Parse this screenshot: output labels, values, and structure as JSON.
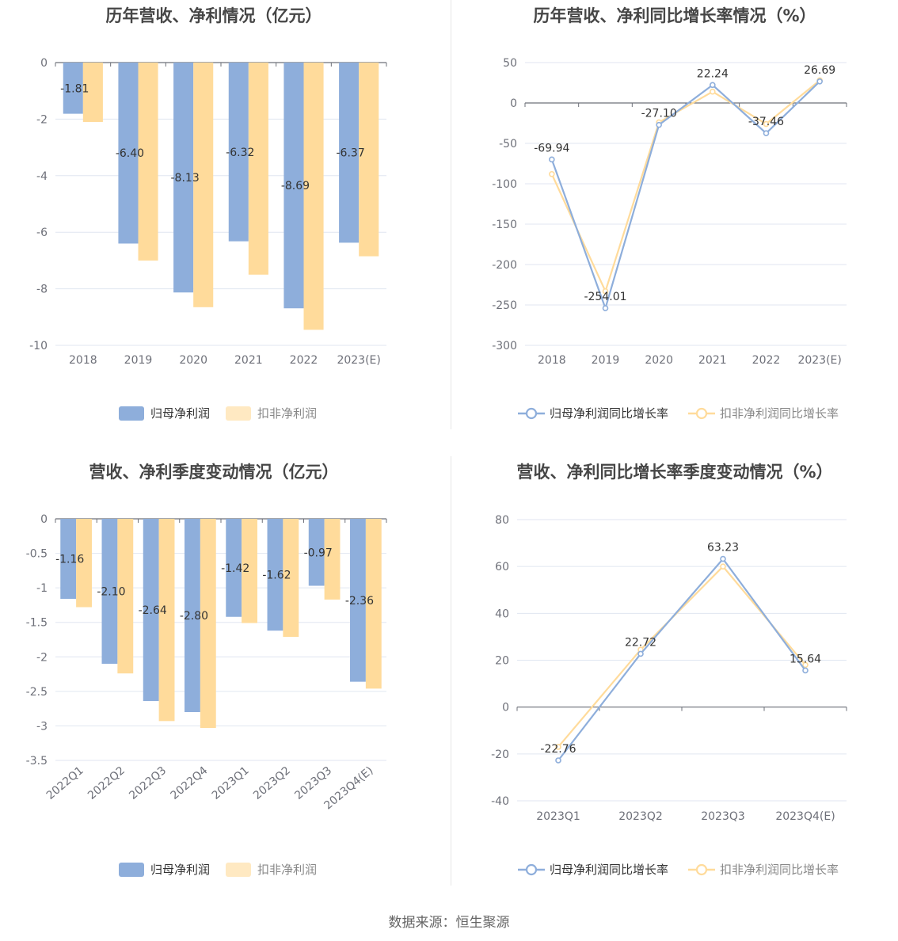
{
  "colors": {
    "primary": "#8eaedb",
    "secondary": "#ffdb9b",
    "secondary_light": "#ffe9c2",
    "axis": "#6e7079",
    "grid": "#e0e6f1",
    "label": "#333333",
    "tick": "#6e7079"
  },
  "source_text": "数据来源：恒生聚源",
  "chart_data": [
    {
      "id": "annual-profit",
      "type": "bar",
      "title": "历年营收、净利情况（亿元）",
      "categories": [
        "2018",
        "2019",
        "2020",
        "2021",
        "2022",
        "2023(E)"
      ],
      "ylim": [
        -10,
        0
      ],
      "yticks": [
        0,
        -2,
        -4,
        -6,
        -8,
        -10
      ],
      "ytick_labels": [
        "0",
        "-2",
        "-4",
        "-6",
        "-8",
        "-10"
      ],
      "grid": true,
      "legend_position": "bottom-center",
      "series": [
        {
          "name": "归母净利润",
          "values": [
            -1.81,
            -6.4,
            -8.13,
            -6.32,
            -8.69,
            -6.37
          ],
          "labels": [
            "-1.81",
            "-6.40",
            "-8.13",
            "-6.32",
            "-8.69",
            "-6.37"
          ]
        },
        {
          "name": "扣非净利润",
          "values": [
            -2.1,
            -7.0,
            -8.65,
            -7.5,
            -9.45,
            -6.85
          ]
        }
      ]
    },
    {
      "id": "annual-growth",
      "type": "line",
      "title": "历年营收、净利同比增长率情况（%）",
      "categories": [
        "2018",
        "2019",
        "2020",
        "2021",
        "2022",
        "2023(E)"
      ],
      "ylim": [
        -300,
        50
      ],
      "yticks": [
        50,
        0,
        -50,
        -100,
        -150,
        -200,
        -250,
        -300
      ],
      "ytick_labels": [
        "50",
        "0",
        "-50",
        "-100",
        "-150",
        "-200",
        "-250",
        "-300"
      ],
      "grid": true,
      "legend_position": "bottom-center",
      "series": [
        {
          "name": "归母净利润同比增长率",
          "values": [
            -69.94,
            -254.01,
            -27.1,
            22.24,
            -37.46,
            26.69
          ],
          "labels": [
            "-69.94",
            "-254.01",
            "-27.10",
            "22.24",
            "-37.46",
            "26.69"
          ]
        },
        {
          "name": "扣非净利润同比增长率",
          "values": [
            -88,
            -233,
            -24,
            14,
            -26,
            28
          ]
        }
      ]
    },
    {
      "id": "quarterly-profit",
      "type": "bar",
      "title": "营收、净利季度变动情况（亿元）",
      "categories": [
        "2022Q1",
        "2022Q2",
        "2022Q3",
        "2022Q4",
        "2023Q1",
        "2023Q2",
        "2023Q3",
        "2023Q4(E)"
      ],
      "ylim": [
        -3.5,
        0
      ],
      "yticks": [
        0,
        -0.5,
        -1,
        -1.5,
        -2,
        -2.5,
        -3,
        -3.5
      ],
      "ytick_labels": [
        "0",
        "-0.5",
        "-1",
        "-1.5",
        "-2",
        "-2.5",
        "-3",
        "-3.5"
      ],
      "grid": true,
      "legend_position": "bottom-center",
      "series": [
        {
          "name": "归母净利润",
          "values": [
            -1.16,
            -2.1,
            -2.64,
            -2.8,
            -1.42,
            -1.62,
            -0.97,
            -2.36
          ],
          "labels": [
            "-1.16",
            "-2.10",
            "-2.64",
            "-2.80",
            "-1.42",
            "-1.62",
            "-0.97",
            "-2.36"
          ]
        },
        {
          "name": "扣非净利润",
          "values": [
            -1.28,
            -2.24,
            -2.93,
            -3.03,
            -1.51,
            -1.71,
            -1.17,
            -2.46
          ]
        }
      ]
    },
    {
      "id": "quarterly-growth",
      "type": "line",
      "title": "营收、净利同比增长率季度变动情况（%）",
      "categories": [
        "2023Q1",
        "2023Q2",
        "2023Q3",
        "2023Q4(E)"
      ],
      "ylim": [
        -40,
        80
      ],
      "yticks": [
        80,
        60,
        40,
        20,
        0,
        -20,
        -40
      ],
      "ytick_labels": [
        "80",
        "60",
        "40",
        "20",
        "0",
        "-20",
        "-40"
      ],
      "grid": true,
      "legend_position": "bottom-center",
      "series": [
        {
          "name": "归母净利润同比增长率",
          "values": [
            -22.76,
            22.72,
            63.23,
            15.64
          ],
          "labels": [
            "-22.76",
            "22.72",
            "63.23",
            "15.64"
          ]
        },
        {
          "name": "扣非净利润同比增长率",
          "values": [
            -17,
            24.5,
            60,
            18
          ]
        }
      ]
    }
  ]
}
